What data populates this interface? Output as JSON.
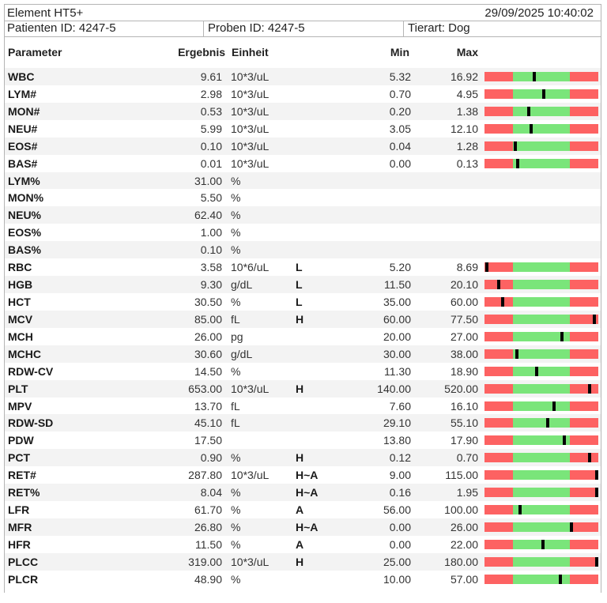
{
  "header": {
    "device": "Element HT5+",
    "datetime": "29/09/2025 10:40:02",
    "patient_id": "Patienten ID: 4247-5",
    "sample_id": "Proben ID: 4247-5",
    "species": "Tierart: Dog"
  },
  "columns": {
    "parameter": "Parameter",
    "result": "Ergebnis",
    "unit": "Einheit",
    "min": "Min",
    "max": "Max"
  },
  "colors": {
    "out_of_range": "#fd6262",
    "in_range": "#7ae57a",
    "marker": "#050505"
  },
  "rows": [
    {
      "param": "WBC",
      "result": "9.61",
      "unit": "10*3/uL",
      "flag": "",
      "min": "5.32",
      "max": "16.92"
    },
    {
      "param": "LYM#",
      "result": "2.98",
      "unit": "10*3/uL",
      "flag": "",
      "min": "0.70",
      "max": "4.95"
    },
    {
      "param": "MON#",
      "result": "0.53",
      "unit": "10*3/uL",
      "flag": "",
      "min": "0.20",
      "max": "1.38"
    },
    {
      "param": "NEU#",
      "result": "5.99",
      "unit": "10*3/uL",
      "flag": "",
      "min": "3.05",
      "max": "12.10"
    },
    {
      "param": "EOS#",
      "result": "0.10",
      "unit": "10*3/uL",
      "flag": "",
      "min": "0.04",
      "max": "1.28"
    },
    {
      "param": "BAS#",
      "result": "0.01",
      "unit": "10*3/uL",
      "flag": "",
      "min": "0.00",
      "max": "0.13"
    },
    {
      "param": "LYM%",
      "result": "31.00",
      "unit": "%",
      "flag": "",
      "min": "",
      "max": ""
    },
    {
      "param": "MON%",
      "result": "5.50",
      "unit": "%",
      "flag": "",
      "min": "",
      "max": ""
    },
    {
      "param": "NEU%",
      "result": "62.40",
      "unit": "%",
      "flag": "",
      "min": "",
      "max": ""
    },
    {
      "param": "EOS%",
      "result": "1.00",
      "unit": "%",
      "flag": "",
      "min": "",
      "max": ""
    },
    {
      "param": "BAS%",
      "result": "0.10",
      "unit": "%",
      "flag": "",
      "min": "",
      "max": ""
    },
    {
      "param": "RBC",
      "result": "3.58",
      "unit": "10*6/uL",
      "flag": "L",
      "min": "5.20",
      "max": "8.69"
    },
    {
      "param": "HGB",
      "result": "9.30",
      "unit": "g/dL",
      "flag": "L",
      "min": "11.50",
      "max": "20.10"
    },
    {
      "param": "HCT",
      "result": "30.50",
      "unit": "%",
      "flag": "L",
      "min": "35.00",
      "max": "60.00"
    },
    {
      "param": "MCV",
      "result": "85.00",
      "unit": "fL",
      "flag": "H",
      "min": "60.00",
      "max": "77.50"
    },
    {
      "param": "MCH",
      "result": "26.00",
      "unit": "pg",
      "flag": "",
      "min": "20.00",
      "max": "27.00"
    },
    {
      "param": "MCHC",
      "result": "30.60",
      "unit": "g/dL",
      "flag": "",
      "min": "30.00",
      "max": "38.00"
    },
    {
      "param": "RDW-CV",
      "result": "14.50",
      "unit": "%",
      "flag": "",
      "min": "11.30",
      "max": "18.90"
    },
    {
      "param": "PLT",
      "result": "653.00",
      "unit": "10*3/uL",
      "flag": "H",
      "min": "140.00",
      "max": "520.00"
    },
    {
      "param": "MPV",
      "result": "13.70",
      "unit": "fL",
      "flag": "",
      "min": "7.60",
      "max": "16.10"
    },
    {
      "param": "RDW-SD",
      "result": "45.10",
      "unit": "fL",
      "flag": "",
      "min": "29.10",
      "max": "55.10"
    },
    {
      "param": "PDW",
      "result": "17.50",
      "unit": "",
      "flag": "",
      "min": "13.80",
      "max": "17.90"
    },
    {
      "param": "PCT",
      "result": "0.90",
      "unit": "%",
      "flag": "H",
      "min": "0.12",
      "max": "0.70"
    },
    {
      "param": "RET#",
      "result": "287.80",
      "unit": "10*3/uL",
      "flag": "H~A",
      "min": "9.00",
      "max": "115.00"
    },
    {
      "param": "RET%",
      "result": "8.04",
      "unit": "%",
      "flag": "H~A",
      "min": "0.16",
      "max": "1.95"
    },
    {
      "param": "LFR",
      "result": "61.70",
      "unit": "%",
      "flag": "A",
      "min": "56.00",
      "max": "100.00"
    },
    {
      "param": "MFR",
      "result": "26.80",
      "unit": "%",
      "flag": "H~A",
      "min": "0.00",
      "max": "26.00"
    },
    {
      "param": "HFR",
      "result": "11.50",
      "unit": "%",
      "flag": "A",
      "min": "0.00",
      "max": "22.00"
    },
    {
      "param": "PLCC",
      "result": "319.00",
      "unit": "10*3/uL",
      "flag": "H",
      "min": "25.00",
      "max": "180.00"
    },
    {
      "param": "PLCR",
      "result": "48.90",
      "unit": "%",
      "flag": "",
      "min": "10.00",
      "max": "57.00"
    }
  ]
}
